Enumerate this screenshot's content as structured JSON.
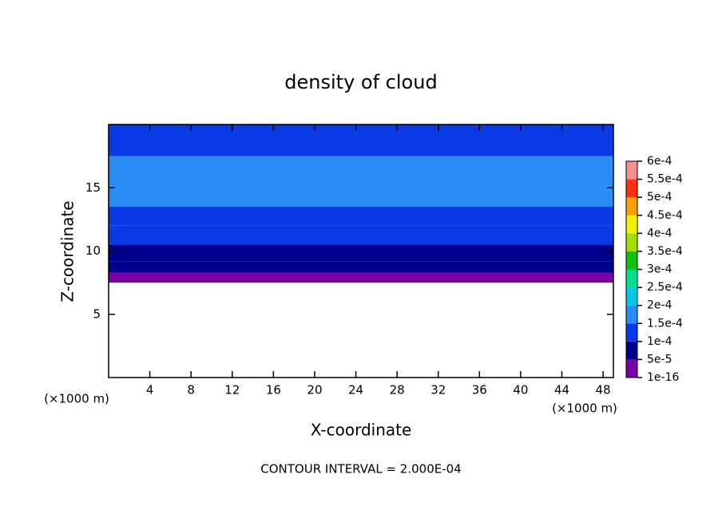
{
  "chart_data": {
    "type": "contour",
    "title": "density of cloud",
    "x_label": "X-coordinate",
    "y_label": "Z-coordinate",
    "y_unit": "(×1000 m)",
    "x_unit": "(×1000 m)",
    "annotation": "CONTOUR INTERVAL = 2.000E-04",
    "xlim": [
      0,
      49
    ],
    "ylim": [
      0,
      20
    ],
    "xticks": [
      4,
      8,
      12,
      16,
      20,
      24,
      28,
      32,
      36,
      40,
      44,
      48
    ],
    "yticks": [
      5,
      10,
      15
    ],
    "layers": {
      "z_edges": [
        7.5,
        8.3,
        9.2,
        10.5,
        12,
        13.5,
        17.5,
        20
      ],
      "values": [
        3e-05,
        6e-05,
        8e-05,
        0.00011,
        0.00013,
        0.00016,
        0.00012
      ]
    },
    "colorbar": {
      "ticks": [
        {
          "value": 1e-16,
          "label": "1e-16"
        },
        {
          "value": 5e-05,
          "label": "5e-5"
        },
        {
          "value": 0.0001,
          "label": "1e-4"
        },
        {
          "value": 0.00015,
          "label": "1.5e-4"
        },
        {
          "value": 0.0002,
          "label": "2e-4"
        },
        {
          "value": 0.00025,
          "label": "2.5e-4"
        },
        {
          "value": 0.0003,
          "label": "3e-4"
        },
        {
          "value": 0.00035,
          "label": "3.5e-4"
        },
        {
          "value": 0.0004,
          "label": "4e-4"
        },
        {
          "value": 0.00045,
          "label": "4.5e-4"
        },
        {
          "value": 0.0005,
          "label": "5e-4"
        },
        {
          "value": 0.00055,
          "label": "5.5e-4"
        },
        {
          "value": 0.0006,
          "label": "6e-4"
        }
      ],
      "colors": [
        "#7a00aa",
        "#00008c",
        "#0a3ae6",
        "#2a8cf5",
        "#00c8e6",
        "#00e08c",
        "#10c010",
        "#a0e000",
        "#f0f000",
        "#ffa000",
        "#ff3010",
        "#f89090"
      ]
    }
  }
}
